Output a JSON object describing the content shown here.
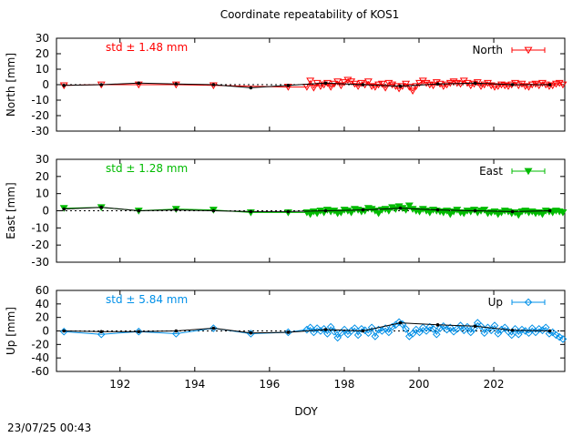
{
  "title": "Coordinate repeatability of KOS1",
  "footer_timestamp": "23/07/25 00:43",
  "chart_data": [
    {
      "type": "scatter",
      "ylabel": "North [mm]",
      "series_name": "North",
      "std_label": "std ± 1.48 mm",
      "color": "#ff0000",
      "marker": "triangle-down-open",
      "ylim": [
        -30,
        30
      ],
      "yticks": [
        30,
        20,
        10,
        0,
        -10,
        -20,
        -30
      ],
      "xlim": [
        190.3,
        203.9
      ],
      "daily_x": [
        190.5,
        191.5,
        192.5,
        193.5,
        194.5,
        195.5,
        196.5,
        197.5,
        198.5,
        199.5,
        200.5,
        201.5,
        202.5,
        203.5
      ],
      "daily_y": [
        -0.5,
        0.0,
        1.0,
        0.5,
        0.0,
        -2.0,
        -0.5,
        1.0,
        0.0,
        -1.0,
        0.5,
        1.0,
        0.0,
        0.0
      ],
      "early_x": [
        190.5,
        191.5,
        192.5,
        193.5,
        194.5,
        196.5
      ],
      "early_y": [
        -0.5,
        0.0,
        0.0,
        0.0,
        -0.5,
        -1.5
      ],
      "dense_x0": 197.0,
      "dense_x1": 203.85,
      "dense_values": [
        -1.5,
        2.5,
        -2.0,
        1.0,
        -1.0,
        0.0,
        1.0,
        -1.5,
        0.5,
        2.0,
        -0.5,
        1.5,
        3.0,
        2.0,
        0.5,
        -1.0,
        1.0,
        0.0,
        2.0,
        -1.0,
        -1.5,
        0.0,
        0.5,
        -2.0,
        1.0,
        0.0,
        -1.0,
        -2.5,
        -1.0,
        0.5,
        -1.5,
        -4.0,
        -1.0,
        1.0,
        2.5,
        1.0,
        0.0,
        -0.5,
        1.5,
        0.5,
        -1.0,
        0.0,
        1.0,
        2.0,
        1.0,
        0.5,
        2.5,
        1.0,
        -0.5,
        0.5,
        1.5,
        -1.0,
        0.0,
        1.0,
        -0.5,
        -1.5,
        -1.0,
        0.0,
        -0.5,
        -1.0,
        0.0,
        1.0,
        -0.5,
        0.5,
        -1.0,
        -1.5,
        0.0,
        0.5,
        -0.5,
        1.0,
        0.0,
        -1.0,
        -0.5,
        0.5,
        1.0,
        0.0
      ]
    },
    {
      "type": "scatter",
      "ylabel": "East [mm]",
      "series_name": "East",
      "std_label": "std ± 1.28 mm",
      "color": "#00bb00",
      "marker": "triangle-down-filled",
      "ylim": [
        -30,
        30
      ],
      "yticks": [
        30,
        20,
        10,
        0,
        -10,
        -20,
        -30
      ],
      "xlim": [
        190.3,
        203.9
      ],
      "daily_x": [
        190.5,
        191.5,
        192.5,
        193.5,
        194.5,
        195.5,
        196.5,
        197.5,
        198.5,
        199.5,
        200.5,
        201.5,
        202.5,
        203.5
      ],
      "daily_y": [
        1.0,
        2.0,
        0.0,
        0.5,
        0.0,
        -0.5,
        -0.5,
        0.0,
        0.5,
        1.5,
        0.5,
        0.0,
        -0.5,
        0.0
      ],
      "early_x": [
        190.5,
        191.5,
        192.5,
        193.5,
        194.5,
        195.5,
        196.5
      ],
      "early_y": [
        1.5,
        2.0,
        0.0,
        1.0,
        0.5,
        -1.0,
        -1.0
      ],
      "dense_x0": 197.0,
      "dense_x1": 203.85,
      "dense_values": [
        -1.0,
        -2.0,
        -0.5,
        -1.5,
        0.0,
        -1.0,
        0.5,
        -0.5,
        0.0,
        -1.5,
        -1.0,
        0.5,
        0.0,
        -1.0,
        1.0,
        0.5,
        -0.5,
        0.0,
        1.5,
        1.0,
        0.0,
        -1.5,
        0.5,
        1.0,
        0.0,
        2.0,
        1.0,
        2.5,
        1.5,
        0.5,
        3.0,
        1.0,
        0.0,
        -0.5,
        1.0,
        0.0,
        -1.0,
        0.5,
        0.0,
        -0.5,
        -1.0,
        0.0,
        -2.0,
        -0.5,
        0.5,
        -1.0,
        -1.5,
        0.0,
        -0.5,
        0.5,
        -1.0,
        0.0,
        0.5,
        -1.5,
        -1.0,
        -0.5,
        -2.0,
        -1.0,
        0.0,
        -0.5,
        -1.5,
        -1.0,
        -2.5,
        -0.5,
        0.0,
        -1.0,
        -0.5,
        -1.5,
        -1.0,
        -2.0,
        0.0,
        -0.5,
        -1.0,
        0.0,
        -0.5,
        -1.0
      ]
    },
    {
      "type": "scatter",
      "ylabel": "Up [mm]",
      "series_name": "Up",
      "std_label": "std ± 5.84 mm",
      "color": "#0090e8",
      "marker": "diamond-open",
      "ylim": [
        -60,
        60
      ],
      "yticks": [
        60,
        40,
        20,
        0,
        -20,
        -40,
        -60
      ],
      "xlim": [
        190.3,
        203.9
      ],
      "daily_x": [
        190.5,
        191.5,
        192.5,
        193.5,
        194.5,
        195.5,
        196.5,
        197.5,
        198.5,
        199.5,
        200.5,
        201.5,
        202.5,
        203.5
      ],
      "daily_y": [
        0.0,
        -1.0,
        -1.0,
        0.0,
        4.0,
        -3.0,
        -2.0,
        2.0,
        0.0,
        12.0,
        9.0,
        7.0,
        1.0,
        0.0
      ],
      "early_x": [
        190.5,
        191.5,
        192.5,
        193.5,
        194.5,
        195.5,
        196.5
      ],
      "early_y": [
        -1.0,
        -5.0,
        -1.0,
        -4.0,
        4.0,
        -4.0,
        -2.0
      ],
      "dense_x0": 197.0,
      "dense_x1": 203.85,
      "dense_values": [
        2.0,
        5.0,
        -2.0,
        4.0,
        0.0,
        3.0,
        -4.0,
        6.0,
        -1.0,
        -10.0,
        -3.0,
        2.0,
        -5.0,
        0.0,
        4.0,
        -6.0,
        3.0,
        1.0,
        -3.0,
        5.0,
        -8.0,
        2.0,
        0.0,
        4.0,
        -2.0,
        6.0,
        9.0,
        13.0,
        10.0,
        3.0,
        -8.0,
        -4.0,
        2.0,
        -2.0,
        5.0,
        0.0,
        6.0,
        3.0,
        -5.0,
        4.0,
        7.0,
        2.0,
        5.0,
        -1.0,
        3.0,
        8.0,
        1.0,
        6.0,
        -2.0,
        4.0,
        12.0,
        7.0,
        -3.0,
        5.0,
        1.0,
        8.0,
        -4.0,
        2.0,
        5.0,
        -1.0,
        -6.0,
        3.0,
        -5.0,
        2.0,
        0.0,
        -3.0,
        4.0,
        -2.0,
        3.0,
        1.0,
        5.0,
        -4.0,
        -2.0,
        -6.0,
        -9.0,
        -12.0
      ]
    }
  ],
  "x_axis": {
    "label": "DOY",
    "ticks": [
      192,
      194,
      196,
      198,
      200,
      202
    ]
  }
}
